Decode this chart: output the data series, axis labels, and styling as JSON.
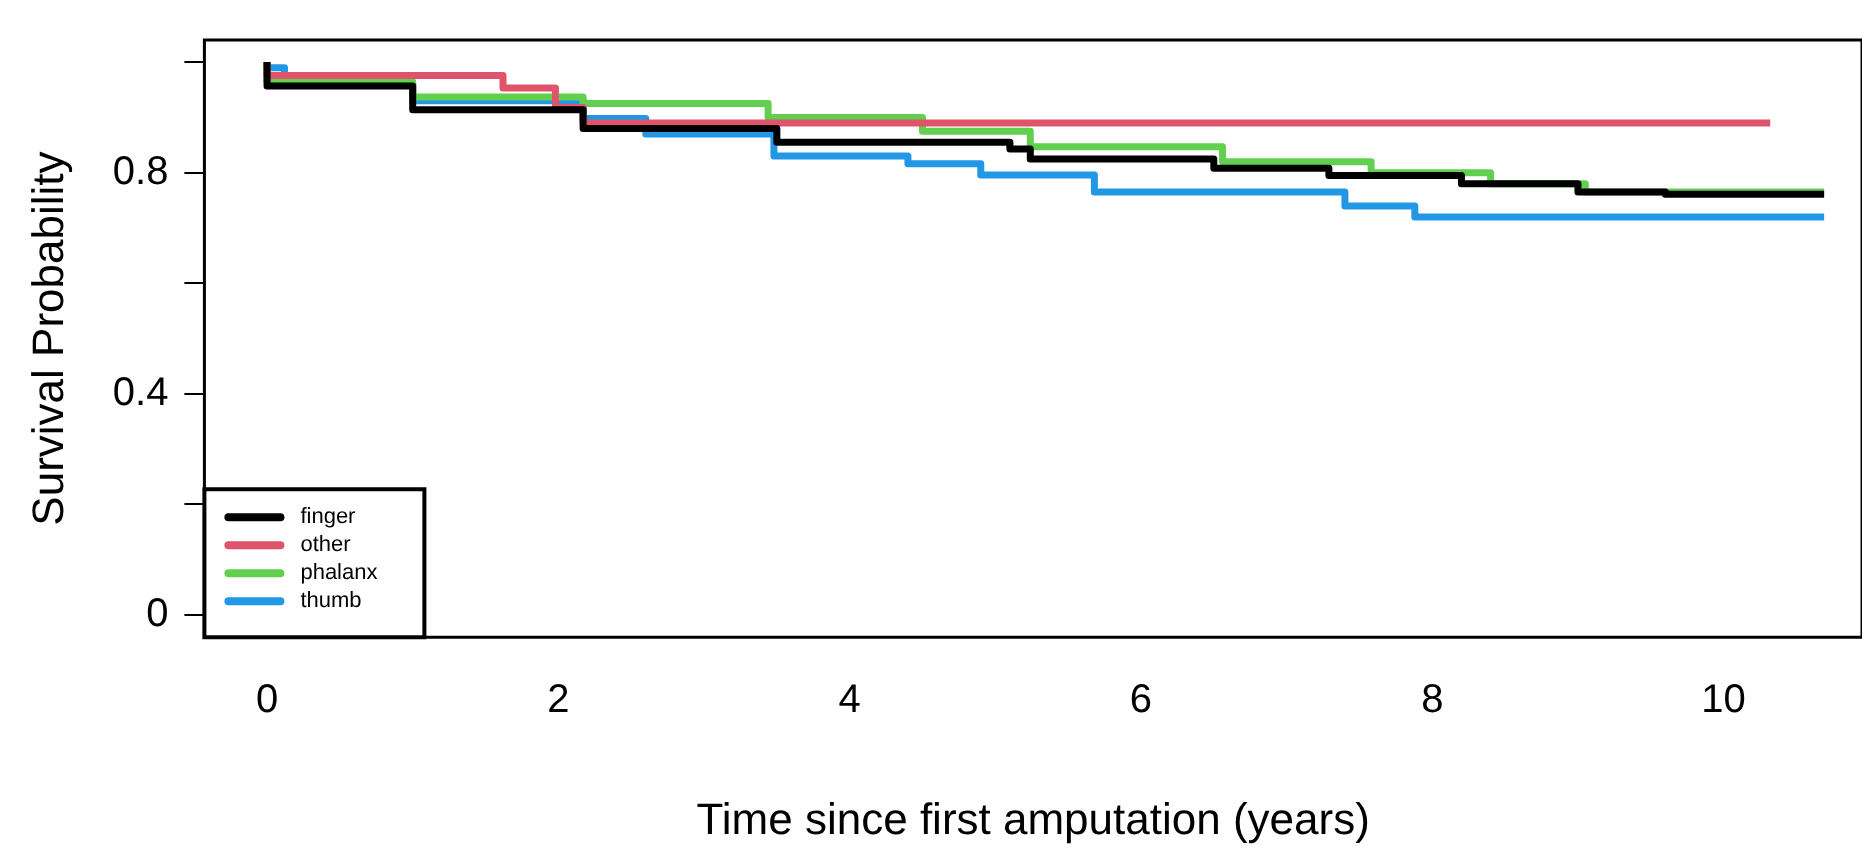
{
  "chart_data": {
    "type": "step",
    "xlabel": "Time since first amputation (years)",
    "ylabel": "Survival Probability",
    "xlim": [
      -0.43,
      10.95
    ],
    "xticks": [
      0,
      2,
      4,
      6,
      8,
      10
    ],
    "ylim": [
      -0.04,
      1.04
    ],
    "yticks": [
      0,
      {
        "value": 0.2,
        "label": null
      },
      0.4,
      {
        "value": 0.6,
        "label": null
      },
      0.8,
      {
        "value": 1,
        "label": null
      }
    ],
    "legend": "bottom left",
    "grid": false,
    "line_style": "solid",
    "marker": "none",
    "series": [
      {
        "name": "finger",
        "color": "#000000",
        "x": [
          0,
          1.0,
          2.17,
          3.5,
          5.1,
          5.24,
          6.5,
          7.29,
          8.2,
          9.0,
          9.6,
          10.69
        ],
        "values": [
          1,
          0.957,
          0.914,
          0.88,
          0.855,
          0.843,
          0.825,
          0.808,
          0.795,
          0.78,
          0.765,
          0.761
        ]
      },
      {
        "name": "other",
        "color": "#df536b",
        "x": [
          0,
          1.62,
          1.98,
          2.17,
          4.61,
          10.32
        ],
        "values": [
          1,
          0.976,
          0.953,
          0.918,
          0.89,
          0.89
        ]
      },
      {
        "name": "phalanx",
        "color": "#61d04f",
        "x": [
          0,
          1.0,
          2.17,
          3.44,
          4.5,
          5.24,
          6.56,
          7.58,
          8.4,
          9.05,
          9.93,
          10.69
        ],
        "values": [
          1,
          0.965,
          0.937,
          0.925,
          0.9,
          0.875,
          0.847,
          0.82,
          0.8,
          0.78,
          0.765,
          0.765
        ]
      },
      {
        "name": "thumb",
        "color": "#2297e6",
        "x": [
          0,
          0.12,
          1.0,
          2.17,
          2.6,
          3.48,
          4.4,
          4.9,
          5.68,
          7.4,
          7.88,
          8.78,
          10.69
        ],
        "values": [
          1,
          0.99,
          0.96,
          0.93,
          0.898,
          0.87,
          0.83,
          0.816,
          0.796,
          0.765,
          0.74,
          0.72,
          0.72
        ]
      }
    ]
  }
}
